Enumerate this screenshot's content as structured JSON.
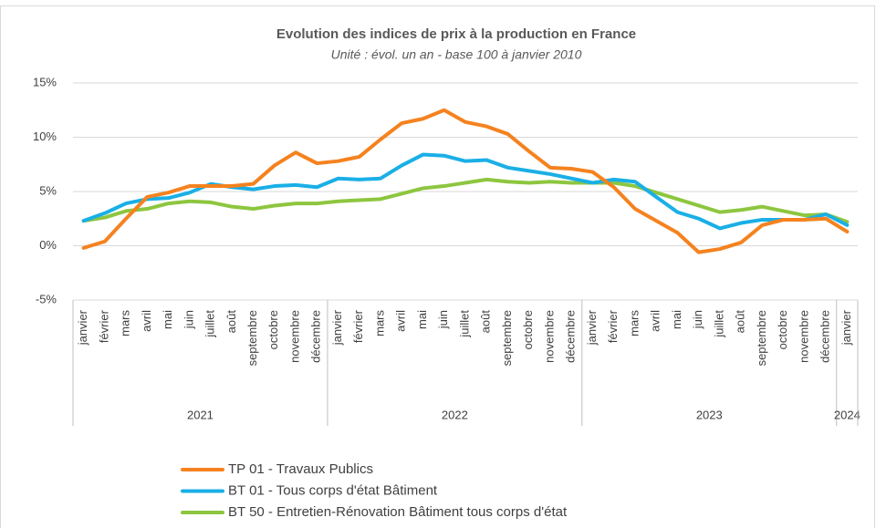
{
  "chart_data": {
    "type": "line",
    "title": "Evolution des indices de prix à la production en France",
    "subtitle": "Unité : évol. un an - base 100 à janvier 2010",
    "categories": [
      "janvier",
      "février",
      "mars",
      "avril",
      "mai",
      "juin",
      "juillet",
      "août",
      "septembre",
      "octobre",
      "novembre",
      "décembre",
      "janvier",
      "février",
      "mars",
      "avril",
      "mai",
      "juin",
      "juillet",
      "août",
      "septembre",
      "octobre",
      "novembre",
      "décembre",
      "janvier",
      "février",
      "mars",
      "avril",
      "mai",
      "juin",
      "juillet",
      "août",
      "septembre",
      "octobre",
      "novembre",
      "décembre",
      "janvier"
    ],
    "year_groups": [
      {
        "label": "2021",
        "size": 12
      },
      {
        "label": "2022",
        "size": 12
      },
      {
        "label": "2023",
        "size": 12
      },
      {
        "label": "2024",
        "size": 1
      }
    ],
    "series": [
      {
        "name": "TP 01 - Travaux Publics",
        "color": "#f5821f",
        "values": [
          -0.2,
          0.4,
          2.5,
          4.5,
          4.9,
          5.5,
          5.5,
          5.5,
          5.7,
          7.4,
          8.6,
          7.6,
          7.8,
          8.2,
          9.8,
          11.3,
          11.7,
          12.5,
          11.4,
          11.0,
          10.3,
          8.7,
          7.2,
          7.1,
          6.8,
          5.4,
          3.4,
          2.3,
          1.2,
          -0.6,
          -0.3,
          0.3,
          1.9,
          2.4,
          2.4,
          2.5,
          1.3
        ]
      },
      {
        "name": "BT 01 - Tous corps d'état Bâtiment",
        "color": "#1aafe6",
        "values": [
          2.3,
          3.0,
          3.9,
          4.3,
          4.4,
          4.9,
          5.7,
          5.4,
          5.2,
          5.5,
          5.6,
          5.4,
          6.2,
          6.1,
          6.2,
          7.4,
          8.4,
          8.3,
          7.8,
          7.9,
          7.2,
          6.9,
          6.6,
          6.2,
          5.8,
          6.1,
          5.9,
          4.5,
          3.1,
          2.5,
          1.6,
          2.1,
          2.4,
          2.4,
          2.4,
          2.9,
          1.9
        ]
      },
      {
        "name": "BT 50 - Entretien-Rénovation Bâtiment tous corps d'état",
        "color": "#8dc63f",
        "values": [
          2.3,
          2.6,
          3.2,
          3.4,
          3.9,
          4.1,
          4.0,
          3.6,
          3.4,
          3.7,
          3.9,
          3.9,
          4.1,
          4.2,
          4.3,
          4.8,
          5.3,
          5.5,
          5.8,
          6.1,
          5.9,
          5.8,
          5.9,
          5.8,
          5.8,
          5.8,
          5.5,
          4.9,
          4.3,
          3.7,
          3.1,
          3.3,
          3.6,
          3.2,
          2.8,
          2.9,
          2.2
        ]
      }
    ],
    "ylim": [
      -5,
      15
    ],
    "yticks": [
      {
        "value": -5,
        "label": "-5%"
      },
      {
        "value": 0,
        "label": "0%"
      },
      {
        "value": 5,
        "label": "5%"
      },
      {
        "value": 10,
        "label": "10%"
      },
      {
        "value": 15,
        "label": "15%"
      }
    ],
    "grid": true
  }
}
